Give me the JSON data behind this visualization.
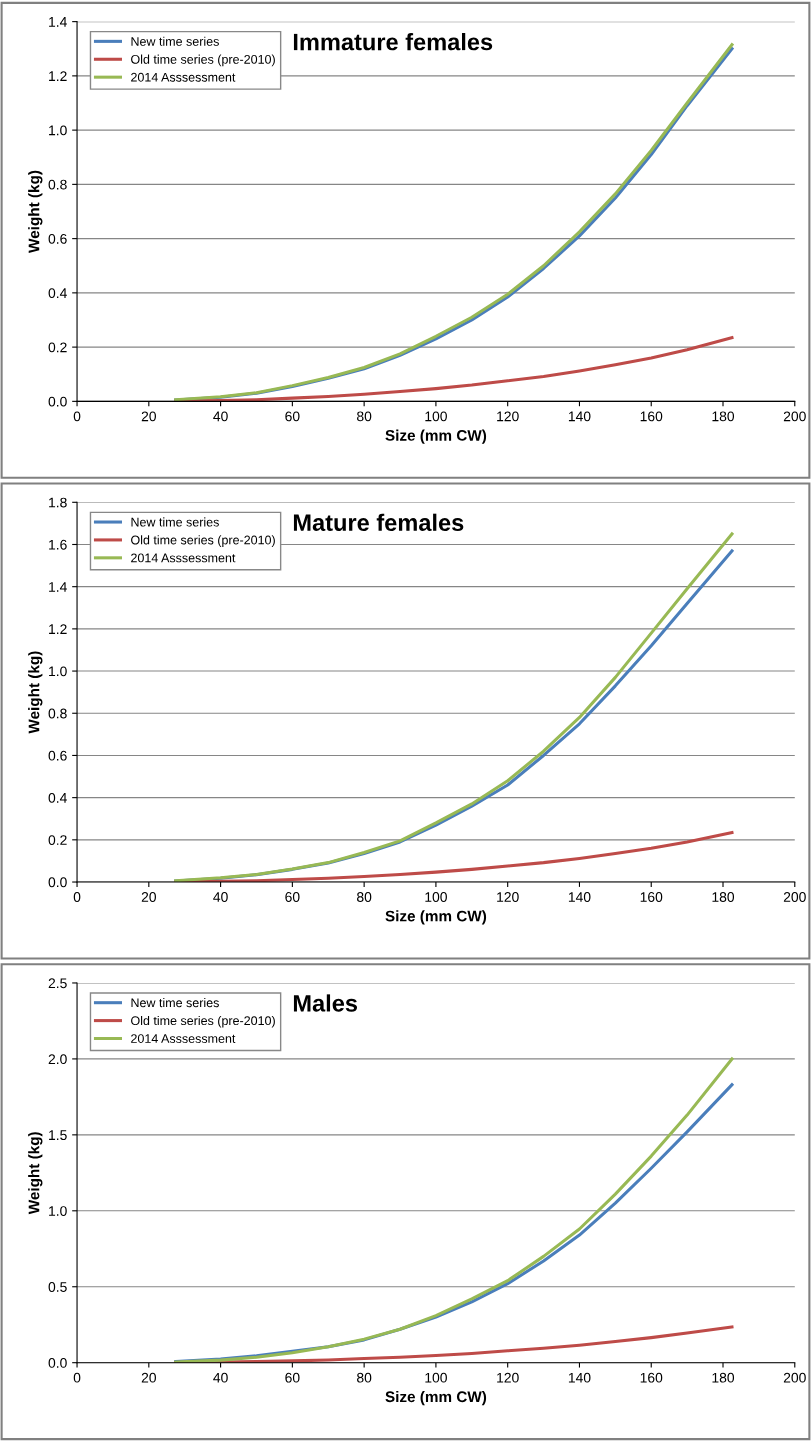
{
  "chart_data": [
    {
      "type": "line",
      "title": "Immature females",
      "xlabel": "Size (mm CW)",
      "ylabel": "Weight (kg)",
      "xlim": [
        0,
        200
      ],
      "xticks": [
        0,
        20,
        40,
        60,
        80,
        100,
        120,
        140,
        160,
        180,
        200
      ],
      "ylim": [
        0,
        1.4
      ],
      "yticks": [
        {
          "value": 0,
          "label": "0.0"
        },
        {
          "value": 0.2,
          "label": "0.2"
        },
        {
          "value": 0.4,
          "label": "0.4"
        },
        {
          "value": 0.6,
          "label": "0.6"
        },
        {
          "value": 0.8,
          "label": "0.8"
        },
        {
          "value": 1.0,
          "label": "1.0"
        },
        {
          "value": 1.2,
          "label": "1.2"
        },
        {
          "value": 1.4,
          "label": "1.4"
        }
      ],
      "grid": "y",
      "legend": "top left",
      "marker": "none",
      "line_style": "solid",
      "x": [
        27.5,
        40,
        50,
        60,
        70,
        80,
        90,
        100,
        110,
        120,
        130,
        140,
        150,
        160,
        170,
        182.5
      ],
      "series": [
        {
          "name": "New time series",
          "color": "#4a7ebb",
          "values": [
            0.005,
            0.015,
            0.03,
            0.055,
            0.085,
            0.12,
            0.17,
            0.23,
            0.3,
            0.385,
            0.49,
            0.61,
            0.75,
            0.91,
            1.09,
            1.3
          ]
        },
        {
          "name": "Old time series (pre-2010)",
          "color": "#be4b48",
          "values": [
            0.001,
            0.003,
            0.006,
            0.012,
            0.018,
            0.026,
            0.036,
            0.047,
            0.06,
            0.076,
            0.092,
            0.112,
            0.135,
            0.16,
            0.19,
            0.235
          ]
        },
        {
          "name": "2014 Asssessment",
          "color": "#98b954",
          "values": [
            0.006,
            0.017,
            0.032,
            0.058,
            0.088,
            0.125,
            0.175,
            0.24,
            0.31,
            0.395,
            0.5,
            0.625,
            0.765,
            0.925,
            1.1,
            1.315
          ]
        }
      ]
    },
    {
      "type": "line",
      "title": "Mature females",
      "xlabel": "Size (mm CW)",
      "ylabel": "Weight (kg)",
      "xlim": [
        0,
        200
      ],
      "xticks": [
        0,
        20,
        40,
        60,
        80,
        100,
        120,
        140,
        160,
        180,
        200
      ],
      "ylim": [
        0,
        1.8
      ],
      "yticks": [
        {
          "value": 0,
          "label": "0.0"
        },
        {
          "value": 0.2,
          "label": "0.2"
        },
        {
          "value": 0.4,
          "label": "0.4"
        },
        {
          "value": 0.6,
          "label": "0.6"
        },
        {
          "value": 0.8,
          "label": "0.8"
        },
        {
          "value": 1.0,
          "label": "1.0"
        },
        {
          "value": 1.2,
          "label": "1.2"
        },
        {
          "value": 1.4,
          "label": "1.4"
        },
        {
          "value": 1.6,
          "label": "1.6"
        },
        {
          "value": 1.8,
          "label": "1.8"
        }
      ],
      "grid": "y",
      "legend": "top left",
      "marker": "none",
      "line_style": "solid",
      "x": [
        27.5,
        40,
        50,
        60,
        70,
        80,
        90,
        100,
        110,
        120,
        130,
        140,
        150,
        160,
        170,
        182.5
      ],
      "series": [
        {
          "name": "New time series",
          "color": "#4a7ebb",
          "values": [
            0.005,
            0.018,
            0.035,
            0.06,
            0.09,
            0.135,
            0.19,
            0.27,
            0.36,
            0.46,
            0.6,
            0.75,
            0.93,
            1.12,
            1.32,
            1.57
          ]
        },
        {
          "name": "Old time series (pre-2010)",
          "color": "#be4b48",
          "values": [
            0.001,
            0.003,
            0.006,
            0.012,
            0.018,
            0.026,
            0.036,
            0.047,
            0.06,
            0.076,
            0.092,
            0.112,
            0.135,
            0.16,
            0.19,
            0.235
          ]
        },
        {
          "name": "2014 Asssessment",
          "color": "#98b954",
          "values": [
            0.006,
            0.02,
            0.036,
            0.062,
            0.092,
            0.14,
            0.195,
            0.28,
            0.37,
            0.48,
            0.62,
            0.78,
            0.97,
            1.18,
            1.39,
            1.65
          ]
        }
      ]
    },
    {
      "type": "line",
      "title": "Males",
      "xlabel": "Size (mm CW)",
      "ylabel": "Weight (kg)",
      "xlim": [
        0,
        200
      ],
      "xticks": [
        0,
        20,
        40,
        60,
        80,
        100,
        120,
        140,
        160,
        180,
        200
      ],
      "ylim": [
        0,
        2.5
      ],
      "yticks": [
        {
          "value": 0,
          "label": "0.0"
        },
        {
          "value": 0.5,
          "label": "0.5"
        },
        {
          "value": 1.0,
          "label": "1.0"
        },
        {
          "value": 1.5,
          "label": "1.5"
        },
        {
          "value": 2.0,
          "label": "2.0"
        },
        {
          "value": 2.5,
          "label": "2.5"
        }
      ],
      "grid": "y",
      "legend": "top left",
      "marker": "none",
      "line_style": "solid",
      "x": [
        27.5,
        40,
        50,
        60,
        70,
        80,
        90,
        100,
        110,
        120,
        130,
        140,
        150,
        160,
        170,
        182.5
      ],
      "series": [
        {
          "name": "New time series",
          "color": "#4a7ebb",
          "values": [
            0.008,
            0.024,
            0.045,
            0.075,
            0.105,
            0.15,
            0.22,
            0.3,
            0.4,
            0.52,
            0.67,
            0.84,
            1.05,
            1.28,
            1.52,
            1.83
          ]
        },
        {
          "name": "Old time series (pre-2010)",
          "color": "#be4b48",
          "values": [
            0.001,
            0.004,
            0.008,
            0.012,
            0.018,
            0.027,
            0.036,
            0.047,
            0.06,
            0.078,
            0.095,
            0.115,
            0.14,
            0.165,
            0.195,
            0.235
          ]
        },
        {
          "name": "2014 Asssessment",
          "color": "#98b954",
          "values": [
            0.004,
            0.017,
            0.036,
            0.066,
            0.105,
            0.155,
            0.22,
            0.31,
            0.42,
            0.54,
            0.7,
            0.88,
            1.11,
            1.36,
            1.63,
            2.0
          ]
        }
      ]
    }
  ]
}
